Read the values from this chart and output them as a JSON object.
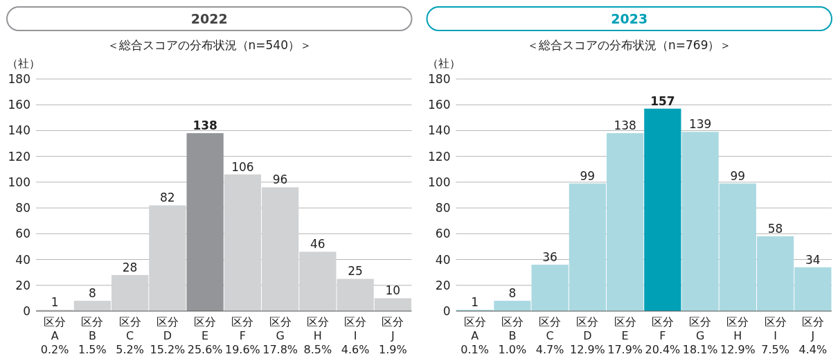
{
  "chart_data": [
    {
      "type": "bar",
      "title": "2022",
      "subtitle": "＜総合スコアの分布状況（n=540）＞",
      "ylabel": "（社）",
      "categories": [
        "区分\nA\n0.2%",
        "区分\nB\n1.5%",
        "区分\nC\n5.2%",
        "区分\nD\n15.2%",
        "区分\nE\n25.6%",
        "区分\nF\n19.6%",
        "区分\nG\n17.8%",
        "区分\nH\n8.5%",
        "区分\nI\n4.6%",
        "区分\nJ\n1.9%"
      ],
      "values": [
        1,
        8,
        28,
        82,
        138,
        106,
        96,
        46,
        25,
        10
      ],
      "colors": [
        "#d1d2d4",
        "#d1d2d4",
        "#d1d2d4",
        "#d1d2d4",
        "#939598",
        "#d1d2d4",
        "#d1d2d4",
        "#d1d2d4",
        "#d1d2d4",
        "#d1d2d4"
      ],
      "ylim": [
        0,
        180
      ],
      "yticks": [
        0,
        20,
        40,
        60,
        80,
        100,
        120,
        140,
        160,
        180
      ],
      "grid": "y",
      "data_labels": true
    },
    {
      "type": "bar",
      "title": "2023",
      "subtitle": "＜総合スコアの分布状況（n=769）＞",
      "ylabel": "（社）",
      "categories": [
        "区分\nA\n0.1%",
        "区分\nB\n1.0%",
        "区分\nC\n4.7%",
        "区分\nD\n12.9%",
        "区分\nE\n17.9%",
        "区分\nF\n20.4%",
        "区分\nG\n18.1%",
        "区分\nH\n12.9%",
        "区分\nI\n7.5%",
        "区分\nJ\n4.4%"
      ],
      "values": [
        1,
        8,
        36,
        99,
        138,
        157,
        139,
        99,
        58,
        34
      ],
      "colors": [
        "#abd9e1",
        "#abd9e1",
        "#abd9e1",
        "#abd9e1",
        "#abd9e1",
        "#00a0b6",
        "#abd9e1",
        "#abd9e1",
        "#abd9e1",
        "#abd9e1"
      ],
      "ylim": [
        0,
        180
      ],
      "yticks": [
        0,
        20,
        40,
        60,
        80,
        100,
        120,
        140,
        160,
        180
      ],
      "grid": "y",
      "data_labels": true
    }
  ]
}
